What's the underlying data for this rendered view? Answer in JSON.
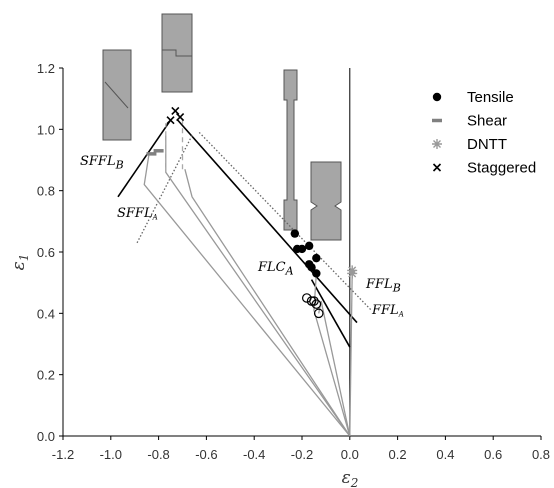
{
  "chart_data": {
    "type": "scatter",
    "x_label": {
      "text": "ε",
      "sub": "2"
    },
    "y_label": {
      "text": "ε",
      "sub": "1"
    },
    "xlim": [
      -1.2,
      0.8
    ],
    "ylim": [
      0,
      1.2
    ],
    "xticks": [
      -1.2,
      {
        "value": -1.0,
        "label": "-1.0"
      },
      -0.8,
      -0.6,
      -0.4,
      -0.2,
      {
        "value": 0,
        "label": "0.0"
      },
      0.2,
      0.4,
      0.6,
      0.8
    ],
    "yticks": [
      {
        "value": 0,
        "label": "0.0"
      },
      0.2,
      0.4,
      0.6,
      0.8,
      {
        "value": 1.0,
        "label": "1.0"
      },
      1.2
    ],
    "grid": false,
    "legend": "upper right",
    "series": [
      {
        "name": "Tensile",
        "color": "#000000",
        "marker": "circle",
        "x": [
          -0.23,
          -0.22,
          -0.2,
          -0.17,
          -0.17,
          -0.16,
          -0.14,
          -0.14
        ],
        "values": [
          0.66,
          0.61,
          0.61,
          0.62,
          0.56,
          0.55,
          0.58,
          0.53
        ]
      },
      {
        "name": "Shear",
        "color": "#808080",
        "marker": "dash",
        "x": [
          -0.83,
          -0.8
        ],
        "values": [
          0.92,
          0.93
        ]
      },
      {
        "name": "DNTT",
        "color": "#999999",
        "marker": "asterisk",
        "x": [
          0.01,
          0.01
        ],
        "values": [
          0.53,
          0.54
        ]
      },
      {
        "name": "Staggered",
        "color": "#000000",
        "marker": "x",
        "x": [
          -0.75,
          -0.73,
          -0.71
        ],
        "values": [
          1.03,
          1.06,
          1.04
        ]
      },
      {
        "color": "#000000",
        "marker": "open",
        "x": [
          -0.18,
          -0.16,
          -0.15,
          -0.14,
          -0.13
        ],
        "values": [
          0.45,
          0.44,
          0.44,
          0.43,
          0.4
        ]
      }
    ],
    "lines": [
      {
        "x": [
          -0.97,
          -0.75
        ],
        "y": [
          0.78,
          1.03
        ],
        "color": "#000000",
        "style": "solid"
      },
      {
        "x": [
          -0.72,
          0.03
        ],
        "y": [
          1.03,
          0.37
        ],
        "color": "#000000",
        "style": "solid"
      },
      {
        "x": [
          -0.16,
          0.0
        ],
        "y": [
          0.51,
          0.29
        ],
        "color": "#000000",
        "style": "solid"
      },
      {
        "x": [
          -0.89,
          -0.66
        ],
        "y": [
          0.63,
          0.98
        ],
        "color": "#666666",
        "style": "dotted"
      },
      {
        "x": [
          -0.63,
          0.09
        ],
        "y": [
          0.99,
          0.41
        ],
        "color": "#666666",
        "style": "dotted"
      },
      {
        "x": [
          0,
          -0.86,
          -0.84
        ],
        "y": [
          0,
          0.82,
          0.92
        ],
        "color": "#999999",
        "style": "solid"
      },
      {
        "x": [
          0,
          -0.77,
          -0.77
        ],
        "y": [
          0,
          0.86,
          0.98
        ],
        "color": "#999999",
        "style": "solid"
      },
      {
        "x": [
          0,
          -0.66,
          -0.69
        ],
        "y": [
          0,
          0.78,
          0.87
        ],
        "color": "#999999",
        "style": "solid"
      },
      {
        "x": [
          0,
          -0.15,
          -0.14
        ],
        "y": [
          0,
          0.41,
          0.53
        ],
        "color": "#999999",
        "style": "solid"
      },
      {
        "x": [
          0,
          -0.12,
          -0.13
        ],
        "y": [
          0,
          0.44,
          0.4
        ],
        "color": "#999999",
        "style": "solid"
      },
      {
        "x": [
          0,
          0.01
        ],
        "y": [
          0,
          0.53
        ],
        "color": "#999999",
        "style": "solid"
      },
      {
        "x": [
          -0.77,
          -0.77
        ],
        "y": [
          0.86,
          1.02
        ],
        "color": "#aaaaaa",
        "style": "dashed"
      },
      {
        "x": [
          -0.7,
          -0.7
        ],
        "y": [
          0.87,
          1.03
        ],
        "color": "#aaaaaa",
        "style": "dashed"
      }
    ],
    "annotations": [
      {
        "text": "SFFL",
        "sub": "B"
      },
      {
        "text": "SFFL",
        "sub": "A"
      },
      {
        "text": "FLC",
        "sub": "A"
      },
      {
        "text": "FFL",
        "sub": "B"
      },
      {
        "text": "FFL",
        "sub": "A"
      }
    ]
  }
}
